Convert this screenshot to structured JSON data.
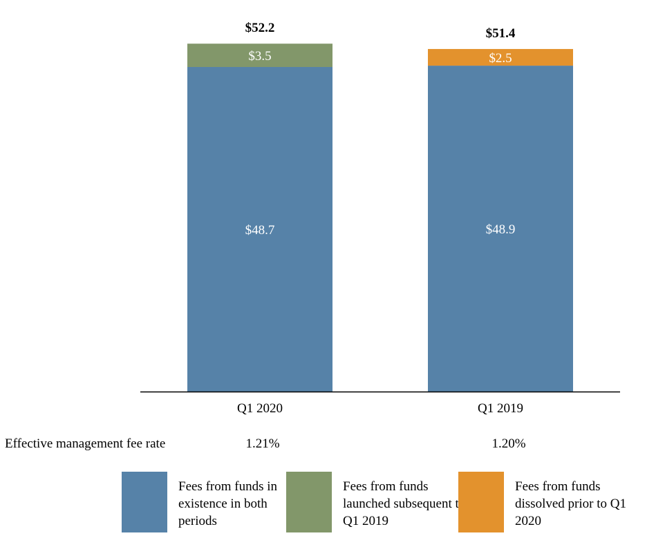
{
  "chart_data": {
    "type": "bar",
    "stacked": true,
    "categories": [
      "Q1 2020",
      "Q1 2019"
    ],
    "series": [
      {
        "name": "Fees from funds in existence in both periods",
        "color": "#5682A8",
        "values": [
          48.7,
          48.9
        ],
        "labels": [
          "$48.7",
          "$48.9"
        ]
      },
      {
        "name": "Fees from funds launched subsequent to Q1 2019",
        "color": "#82976A",
        "values": [
          3.5,
          0
        ],
        "labels": [
          "$3.5",
          ""
        ]
      },
      {
        "name": "Fees from funds dissolved prior to Q1 2020",
        "color": "#E3922D",
        "values": [
          0,
          2.5
        ],
        "labels": [
          "",
          "$2.5"
        ]
      }
    ],
    "totals": [
      "$52.2",
      "$51.4"
    ],
    "legend_position": "bottom",
    "grid": false,
    "y_axis_shown": false
  },
  "rate_row": {
    "label": "Effective management fee rate",
    "values": [
      "1.21%",
      "1.20%"
    ]
  }
}
